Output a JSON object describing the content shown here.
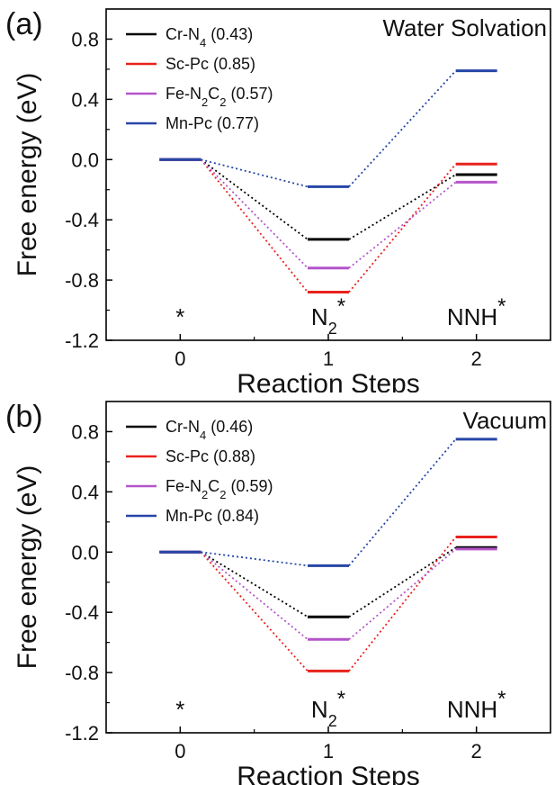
{
  "chart_data": [
    {
      "type": "line",
      "panel_label": "(a)",
      "condition": "Water Solvation",
      "xlabel": "Reaction Steps",
      "ylabel": "Free energy (eV)",
      "x": [
        0,
        1,
        2
      ],
      "xlim": [
        -0.5,
        2.5
      ],
      "ylim": [
        -1.2,
        1.0
      ],
      "x_ticks": [
        "0",
        "1",
        "2"
      ],
      "y_ticks": [
        "-1.2",
        "-0.8",
        "-0.4",
        "0.0",
        "0.4",
        "0.8"
      ],
      "step_labels": [
        {
          "base": "*",
          "sub": ""
        },
        {
          "base": "N",
          "sub": "2",
          "sup": "*"
        },
        {
          "base": "NNH",
          "sub": "",
          "sup": "*"
        }
      ],
      "series": [
        {
          "name_parts": [
            {
              "t": "Cr-N"
            },
            {
              "t": "4",
              "sub": true
            },
            {
              "t": " (0.43)"
            }
          ],
          "color": "#000000",
          "values": [
            0.0,
            -0.53,
            -0.1
          ]
        },
        {
          "name_parts": [
            {
              "t": "Sc-Pc (0.85)"
            }
          ],
          "color": "#e8221c",
          "values": [
            0.0,
            -0.88,
            -0.03
          ]
        },
        {
          "name_parts": [
            {
              "t": "Fe-N"
            },
            {
              "t": "2",
              "sub": true
            },
            {
              "t": "C"
            },
            {
              "t": "2",
              "sub": true
            },
            {
              "t": " (0.57)"
            }
          ],
          "color": "#b455c9",
          "values": [
            0.0,
            -0.72,
            -0.15
          ]
        },
        {
          "name_parts": [
            {
              "t": "Mn-Pc (0.77)"
            }
          ],
          "color": "#2646a8",
          "values": [
            0.0,
            -0.18,
            0.59
          ]
        }
      ],
      "legend_position": "top-left"
    },
    {
      "type": "line",
      "panel_label": "(b)",
      "condition": "Vacuum",
      "xlabel": "Reaction Steps",
      "ylabel": "Free energy (eV)",
      "x": [
        0,
        1,
        2
      ],
      "xlim": [
        -0.5,
        2.5
      ],
      "ylim": [
        -1.2,
        1.0
      ],
      "x_ticks": [
        "0",
        "1",
        "2"
      ],
      "y_ticks": [
        "-1.2",
        "-0.8",
        "-0.4",
        "0.0",
        "0.4",
        "0.8"
      ],
      "step_labels": [
        {
          "base": "*",
          "sub": ""
        },
        {
          "base": "N",
          "sub": "2",
          "sup": "*"
        },
        {
          "base": "NNH",
          "sub": "",
          "sup": "*"
        }
      ],
      "series": [
        {
          "name_parts": [
            {
              "t": "Cr-N"
            },
            {
              "t": "4",
              "sub": true
            },
            {
              "t": " (0.46)"
            }
          ],
          "color": "#000000",
          "values": [
            0.0,
            -0.43,
            0.03
          ]
        },
        {
          "name_parts": [
            {
              "t": "Sc-Pc (0.88)"
            }
          ],
          "color": "#e8221c",
          "values": [
            0.0,
            -0.79,
            0.1
          ]
        },
        {
          "name_parts": [
            {
              "t": "Fe-N"
            },
            {
              "t": "2",
              "sub": true
            },
            {
              "t": "C"
            },
            {
              "t": "2",
              "sub": true
            },
            {
              "t": " (0.59)"
            }
          ],
          "color": "#b455c9",
          "values": [
            0.0,
            -0.58,
            0.02
          ]
        },
        {
          "name_parts": [
            {
              "t": "Mn-Pc (0.84)"
            }
          ],
          "color": "#2646a8",
          "values": [
            0.0,
            -0.09,
            0.75
          ]
        }
      ],
      "legend_position": "top-left"
    }
  ]
}
